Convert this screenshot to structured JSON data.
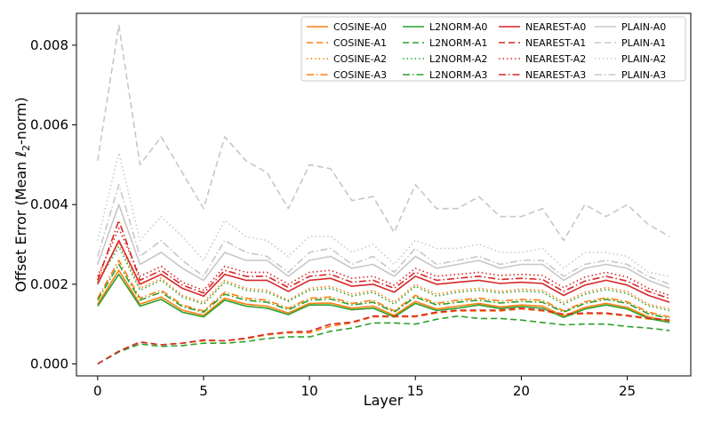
{
  "chart_data": {
    "type": "line",
    "xlabel": "Layer",
    "ylabel": "Offset Error (Mean ℓ2-norm)",
    "ylabel_parts": [
      "Offset Error (Mean ",
      "ℓ",
      "2",
      "-norm)"
    ],
    "xlim": [
      -1,
      28
    ],
    "ylim": [
      -0.0003,
      0.0088
    ],
    "xticks": [
      0,
      5,
      10,
      15,
      20,
      25
    ],
    "yticks": [
      0.0,
      0.002,
      0.004,
      0.006,
      0.008
    ],
    "ytick_labels": [
      "0.000",
      "0.002",
      "0.004",
      "0.006",
      "0.008"
    ],
    "legend_position": "top-right",
    "legend_columns": 4,
    "x": [
      0,
      1,
      2,
      3,
      4,
      5,
      6,
      7,
      8,
      9,
      10,
      11,
      12,
      13,
      14,
      15,
      16,
      17,
      18,
      19,
      20,
      21,
      22,
      23,
      24,
      25,
      26,
      27
    ],
    "series": [
      {
        "name": "COSINE-A0",
        "color": "#ff7f0e",
        "dash": "solid",
        "values": [
          0.0015,
          0.00235,
          0.0015,
          0.00168,
          0.00135,
          0.00122,
          0.00165,
          0.0015,
          0.00145,
          0.00128,
          0.00152,
          0.00153,
          0.0014,
          0.00145,
          0.00122,
          0.00157,
          0.00138,
          0.00145,
          0.00152,
          0.00143,
          0.00148,
          0.00145,
          0.0012,
          0.00142,
          0.00152,
          0.00142,
          0.00118,
          0.00108
        ]
      },
      {
        "name": "COSINE-A1",
        "color": "#ff7f0e",
        "dash": "dashed",
        "values": [
          0.0,
          0.00032,
          0.00055,
          0.00048,
          0.00052,
          0.00058,
          0.00058,
          0.00063,
          0.00073,
          0.00078,
          0.00078,
          0.00095,
          0.00103,
          0.00118,
          0.00118,
          0.00118,
          0.00128,
          0.00133,
          0.00133,
          0.00133,
          0.00138,
          0.00133,
          0.00123,
          0.00126,
          0.00126,
          0.0012,
          0.00113,
          0.00108
        ]
      },
      {
        "name": "COSINE-A2",
        "color": "#ff7f0e",
        "dash": "dotted",
        "values": [
          0.0021,
          0.00305,
          0.0019,
          0.00215,
          0.00172,
          0.00155,
          0.0021,
          0.0019,
          0.00185,
          0.0016,
          0.0019,
          0.00195,
          0.00175,
          0.00185,
          0.00155,
          0.002,
          0.00175,
          0.00185,
          0.0019,
          0.00182,
          0.00188,
          0.00185,
          0.00155,
          0.0018,
          0.00192,
          0.00182,
          0.0015,
          0.00138
        ]
      },
      {
        "name": "COSINE-A3",
        "color": "#ff7f0e",
        "dash": "dashdot",
        "values": [
          0.00165,
          0.0026,
          0.00165,
          0.00185,
          0.00148,
          0.00133,
          0.0018,
          0.00165,
          0.0016,
          0.0014,
          0.00165,
          0.00168,
          0.00152,
          0.0016,
          0.00133,
          0.00172,
          0.00152,
          0.0016,
          0.00165,
          0.00158,
          0.00162,
          0.0016,
          0.00133,
          0.00156,
          0.00166,
          0.00156,
          0.0013,
          0.00118
        ]
      },
      {
        "name": "L2NORM-A0",
        "color": "#2ca02c",
        "dash": "solid",
        "values": [
          0.00145,
          0.00225,
          0.00145,
          0.00162,
          0.0013,
          0.00118,
          0.0016,
          0.00145,
          0.0014,
          0.00124,
          0.00148,
          0.00148,
          0.00136,
          0.0014,
          0.00118,
          0.00152,
          0.00134,
          0.0014,
          0.00148,
          0.00139,
          0.00144,
          0.0014,
          0.00117,
          0.00138,
          0.00148,
          0.00138,
          0.00114,
          0.00104
        ]
      },
      {
        "name": "L2NORM-A1",
        "color": "#2ca02c",
        "dash": "dashed",
        "values": [
          0.0,
          0.0003,
          0.0005,
          0.00044,
          0.00046,
          0.00052,
          0.00052,
          0.00056,
          0.00064,
          0.00068,
          0.00068,
          0.00082,
          0.0009,
          0.00103,
          0.00103,
          0.001,
          0.00112,
          0.0012,
          0.00114,
          0.00114,
          0.0011,
          0.00104,
          0.00098,
          0.001,
          0.001,
          0.00094,
          0.0009,
          0.00084
        ]
      },
      {
        "name": "L2NORM-A2",
        "color": "#2ca02c",
        "dash": "dotted",
        "values": [
          0.00205,
          0.00295,
          0.00185,
          0.0021,
          0.00168,
          0.0015,
          0.00205,
          0.00185,
          0.0018,
          0.00157,
          0.00185,
          0.0019,
          0.0017,
          0.0018,
          0.0015,
          0.00195,
          0.0017,
          0.0018,
          0.00185,
          0.00178,
          0.00183,
          0.0018,
          0.0015,
          0.00175,
          0.00187,
          0.00177,
          0.00146,
          0.00134
        ]
      },
      {
        "name": "L2NORM-A3",
        "color": "#2ca02c",
        "dash": "dashdot",
        "values": [
          0.0016,
          0.0025,
          0.0016,
          0.0018,
          0.00144,
          0.0013,
          0.00175,
          0.0016,
          0.00155,
          0.00136,
          0.0016,
          0.00163,
          0.00148,
          0.00155,
          0.0013,
          0.00168,
          0.00148,
          0.00155,
          0.0016,
          0.00153,
          0.00157,
          0.00155,
          0.0013,
          0.00152,
          0.00162,
          0.00152,
          0.00126,
          0.00114
        ]
      },
      {
        "name": "NEAREST-A0",
        "color": "#d62728",
        "dash": "solid",
        "values": [
          0.002,
          0.0031,
          0.002,
          0.00225,
          0.0019,
          0.0017,
          0.00225,
          0.0021,
          0.0021,
          0.00182,
          0.0021,
          0.00215,
          0.00195,
          0.002,
          0.0018,
          0.0022,
          0.002,
          0.00205,
          0.0021,
          0.00202,
          0.00205,
          0.00202,
          0.00172,
          0.00198,
          0.0021,
          0.00198,
          0.00172,
          0.00155
        ]
      },
      {
        "name": "NEAREST-A1",
        "color": "#d62728",
        "dash": "dashed",
        "values": [
          0.0,
          0.00032,
          0.00055,
          0.00048,
          0.00052,
          0.0006,
          0.00058,
          0.00065,
          0.00075,
          0.0008,
          0.00082,
          0.001,
          0.00105,
          0.0012,
          0.0012,
          0.0012,
          0.0013,
          0.00135,
          0.00135,
          0.00135,
          0.0014,
          0.00135,
          0.00125,
          0.00128,
          0.00128,
          0.00122,
          0.00115,
          0.0011
        ]
      },
      {
        "name": "NEAREST-A2",
        "color": "#d62728",
        "dash": "dotted",
        "values": [
          0.0022,
          0.0034,
          0.0022,
          0.00245,
          0.00205,
          0.00185,
          0.00245,
          0.0023,
          0.0023,
          0.002,
          0.0023,
          0.00235,
          0.00215,
          0.0022,
          0.00198,
          0.0024,
          0.0022,
          0.00225,
          0.0023,
          0.00222,
          0.00225,
          0.00222,
          0.00192,
          0.00218,
          0.0023,
          0.00218,
          0.0019,
          0.00172
        ]
      },
      {
        "name": "NEAREST-A3",
        "color": "#d62728",
        "dash": "dashdot",
        "values": [
          0.0021,
          0.0036,
          0.0021,
          0.00235,
          0.00198,
          0.00178,
          0.00235,
          0.0022,
          0.0022,
          0.00192,
          0.0022,
          0.00225,
          0.00205,
          0.0021,
          0.0019,
          0.0023,
          0.0021,
          0.00215,
          0.0022,
          0.00212,
          0.00215,
          0.00212,
          0.00182,
          0.00208,
          0.0022,
          0.00208,
          0.00182,
          0.00164
        ]
      },
      {
        "name": "PLAIN-A0",
        "color": "#c7c7c7",
        "dash": "solid",
        "values": [
          0.0025,
          0.004,
          0.0025,
          0.0028,
          0.0024,
          0.0021,
          0.0028,
          0.0026,
          0.0026,
          0.0022,
          0.0026,
          0.0027,
          0.0024,
          0.0025,
          0.0022,
          0.0027,
          0.0024,
          0.0025,
          0.0026,
          0.0024,
          0.0025,
          0.0025,
          0.0021,
          0.0024,
          0.0025,
          0.0024,
          0.0021,
          0.0019
        ]
      },
      {
        "name": "PLAIN-A1",
        "color": "#c7c7c7",
        "dash": "dashed",
        "values": [
          0.0051,
          0.0085,
          0.005,
          0.0057,
          0.0048,
          0.0039,
          0.0057,
          0.0051,
          0.0048,
          0.0039,
          0.005,
          0.0049,
          0.0041,
          0.0042,
          0.0033,
          0.0045,
          0.0039,
          0.0039,
          0.0042,
          0.0037,
          0.0037,
          0.0039,
          0.0031,
          0.004,
          0.0037,
          0.004,
          0.0035,
          0.0032
        ]
      },
      {
        "name": "PLAIN-A2",
        "color": "#c7c7c7",
        "dash": "dotted",
        "values": [
          0.0031,
          0.0053,
          0.0031,
          0.0037,
          0.0032,
          0.0026,
          0.0036,
          0.0032,
          0.0031,
          0.0027,
          0.0032,
          0.0032,
          0.0028,
          0.003,
          0.0025,
          0.0031,
          0.0029,
          0.0029,
          0.003,
          0.0028,
          0.0028,
          0.0029,
          0.0024,
          0.0028,
          0.0028,
          0.0027,
          0.0023,
          0.0022
        ]
      },
      {
        "name": "PLAIN-A3",
        "color": "#c7c7c7",
        "dash": "dashdot",
        "values": [
          0.0027,
          0.0045,
          0.0027,
          0.0031,
          0.0026,
          0.0022,
          0.0031,
          0.0028,
          0.0027,
          0.0023,
          0.0028,
          0.0029,
          0.0025,
          0.0027,
          0.0023,
          0.0029,
          0.0025,
          0.0026,
          0.0027,
          0.0025,
          0.0026,
          0.0026,
          0.0022,
          0.0025,
          0.0026,
          0.0025,
          0.0022,
          0.002
        ]
      }
    ]
  }
}
